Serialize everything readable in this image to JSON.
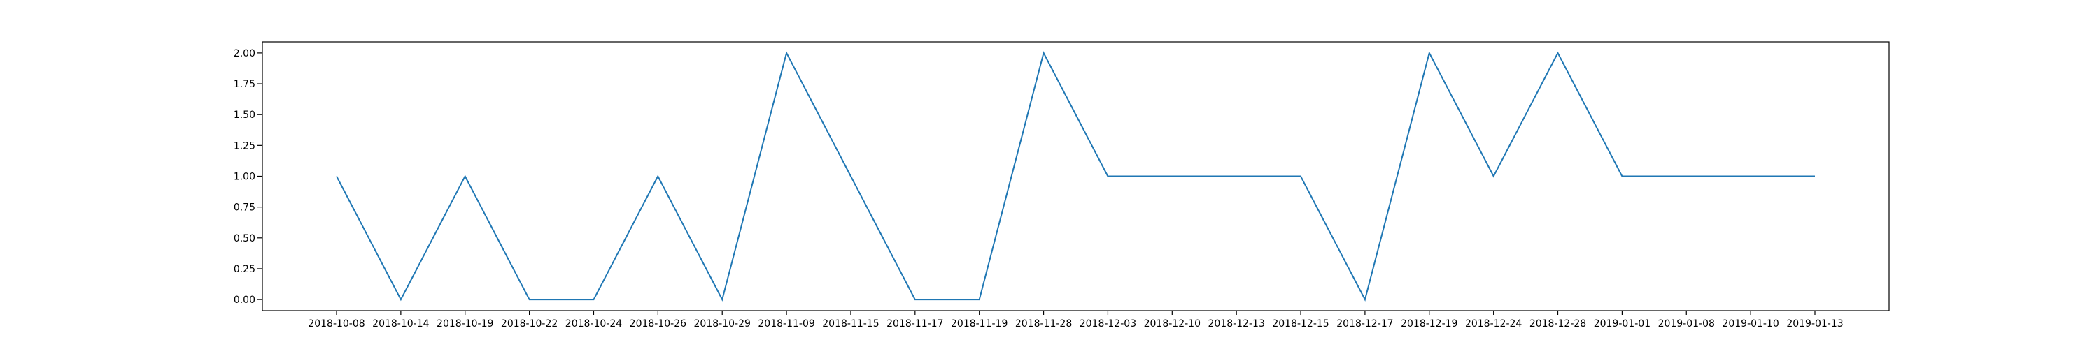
{
  "chart_data": {
    "type": "line",
    "title": "",
    "xlabel": "",
    "ylabel": "",
    "categories": [
      "2018-10-08",
      "2018-10-14",
      "2018-10-19",
      "2018-10-22",
      "2018-10-24",
      "2018-10-26",
      "2018-10-29",
      "2018-11-09",
      "2018-11-15",
      "2018-11-17",
      "2018-11-19",
      "2018-11-28",
      "2018-12-03",
      "2018-12-10",
      "2018-12-13",
      "2018-12-15",
      "2018-12-17",
      "2018-12-19",
      "2018-12-24",
      "2018-12-28",
      "2019-01-01",
      "2019-01-08",
      "2019-01-10",
      "2019-01-13"
    ],
    "series": [
      {
        "color": "#1f77b4",
        "values": [
          1,
          0,
          1,
          0,
          0,
          1,
          0,
          2,
          1,
          0,
          0,
          2,
          1,
          1,
          1,
          1,
          0,
          2,
          1,
          2,
          1,
          1,
          1,
          1
        ]
      }
    ],
    "ylim": [
      -0.09,
      2.09
    ],
    "yticks": [
      "0.00",
      "0.25",
      "0.50",
      "0.75",
      "1.00",
      "1.25",
      "1.50",
      "1.75",
      "2.00"
    ],
    "grid": false,
    "legend": "none"
  }
}
